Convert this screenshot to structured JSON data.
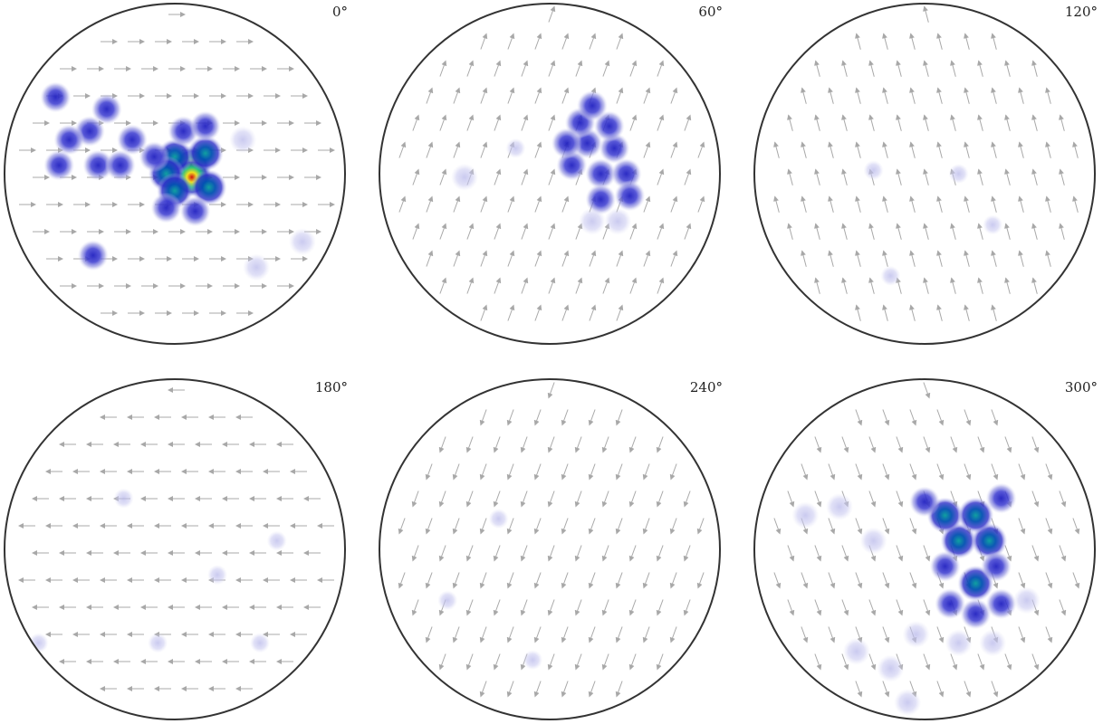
{
  "colors": {
    "outline": "#333333",
    "arrow": "#a8a8a8",
    "density_low": "#dcdcf4",
    "density_mid": "#3030c8",
    "density_high": "#d01010"
  },
  "chart_data": {
    "type": "scatter",
    "description_type": "pole-figure-density",
    "grid": false,
    "panels": [
      {
        "label": "0°",
        "rotation_deg": 0,
        "arrow_angle_deg": 0,
        "clusters": [
          {
            "u": 0.1,
            "v": 0.05,
            "w": 1.0
          },
          {
            "u": 0.1,
            "v": -0.02,
            "w": 1.3
          },
          {
            "u": 0.0,
            "v": 0.1,
            "w": 0.8
          },
          {
            "u": -0.05,
            "v": 0.0,
            "w": 0.8
          },
          {
            "u": 0.18,
            "v": 0.12,
            "w": 0.7
          },
          {
            "u": 0.0,
            "v": -0.1,
            "w": 0.7
          },
          {
            "u": 0.2,
            "v": -0.08,
            "w": 0.6
          },
          {
            "u": 0.05,
            "v": 0.25,
            "w": 0.5
          },
          {
            "u": 0.18,
            "v": 0.28,
            "w": 0.5
          },
          {
            "u": -0.05,
            "v": -0.2,
            "w": 0.5
          },
          {
            "u": 0.12,
            "v": -0.22,
            "w": 0.5
          },
          {
            "u": -0.25,
            "v": 0.2,
            "w": 0.35
          },
          {
            "u": -0.12,
            "v": 0.1,
            "w": 0.3
          },
          {
            "u": -0.7,
            "v": 0.45,
            "w": 0.35
          },
          {
            "u": -0.4,
            "v": 0.38,
            "w": 0.35
          },
          {
            "u": -0.5,
            "v": 0.25,
            "w": 0.3
          },
          {
            "u": -0.62,
            "v": 0.2,
            "w": 0.3
          },
          {
            "u": -0.45,
            "v": 0.05,
            "w": 0.3
          },
          {
            "u": -0.68,
            "v": 0.05,
            "w": 0.3
          },
          {
            "u": -0.32,
            "v": 0.05,
            "w": 0.3
          },
          {
            "u": -0.48,
            "v": -0.48,
            "w": 0.35
          },
          {
            "u": 0.48,
            "v": -0.55,
            "w": 0.25
          },
          {
            "u": 0.4,
            "v": 0.2,
            "w": 0.25
          },
          {
            "u": 0.75,
            "v": -0.4,
            "w": 0.2
          }
        ]
      },
      {
        "label": "60°",
        "rotation_deg": 60,
        "arrow_angle_deg": 70,
        "clusters": [
          {
            "u": 0.22,
            "v": 0.18,
            "w": 0.55
          },
          {
            "u": 0.38,
            "v": 0.15,
            "w": 0.45
          },
          {
            "u": 0.3,
            "v": 0.0,
            "w": 0.4
          },
          {
            "u": 0.13,
            "v": 0.05,
            "w": 0.4
          },
          {
            "u": 0.45,
            "v": 0.0,
            "w": 0.4
          },
          {
            "u": 0.3,
            "v": -0.15,
            "w": 0.4
          },
          {
            "u": 0.47,
            "v": -0.13,
            "w": 0.4
          },
          {
            "u": 0.18,
            "v": 0.3,
            "w": 0.35
          },
          {
            "u": 0.35,
            "v": 0.28,
            "w": 0.35
          },
          {
            "u": 0.25,
            "v": 0.4,
            "w": 0.3
          },
          {
            "u": 0.1,
            "v": 0.18,
            "w": 0.3
          },
          {
            "u": 0.25,
            "v": -0.28,
            "w": 0.25
          },
          {
            "u": 0.4,
            "v": -0.28,
            "w": 0.25
          },
          {
            "u": -0.5,
            "v": -0.02,
            "w": 0.15
          },
          {
            "u": -0.2,
            "v": 0.15,
            "w": 0.1
          }
        ]
      },
      {
        "label": "120°",
        "rotation_deg": 120,
        "arrow_angle_deg": 105,
        "clusters": [
          {
            "u": -0.3,
            "v": 0.02,
            "w": 0.08
          },
          {
            "u": 0.2,
            "v": 0.0,
            "w": 0.05
          },
          {
            "u": 0.4,
            "v": -0.3,
            "w": 0.05
          },
          {
            "u": -0.2,
            "v": -0.6,
            "w": 0.05
          }
        ]
      },
      {
        "label": "180°",
        "rotation_deg": 180,
        "arrow_angle_deg": 180,
        "clusters": [
          {
            "u": -0.3,
            "v": 0.3,
            "w": 0.12
          },
          {
            "u": 0.25,
            "v": -0.15,
            "w": 0.12
          },
          {
            "u": -0.1,
            "v": -0.55,
            "w": 0.1
          },
          {
            "u": 0.5,
            "v": -0.55,
            "w": 0.12
          },
          {
            "u": -0.8,
            "v": -0.55,
            "w": 0.1
          },
          {
            "u": 0.6,
            "v": 0.05,
            "w": 0.08
          }
        ]
      },
      {
        "label": "240°",
        "rotation_deg": 240,
        "arrow_angle_deg": 250,
        "clusters": [
          {
            "u": -0.3,
            "v": 0.18,
            "w": 0.1
          },
          {
            "u": -0.6,
            "v": -0.3,
            "w": 0.08
          },
          {
            "u": -0.1,
            "v": -0.65,
            "w": 0.05
          }
        ]
      },
      {
        "label": "300°",
        "rotation_deg": 300,
        "arrow_angle_deg": 290,
        "clusters": [
          {
            "u": 0.3,
            "v": -0.2,
            "w": 0.85
          },
          {
            "u": 0.2,
            "v": 0.05,
            "w": 0.65
          },
          {
            "u": 0.38,
            "v": 0.05,
            "w": 0.6
          },
          {
            "u": 0.12,
            "v": 0.2,
            "w": 0.6
          },
          {
            "u": 0.3,
            "v": 0.2,
            "w": 0.6
          },
          {
            "u": 0.12,
            "v": -0.1,
            "w": 0.55
          },
          {
            "u": 0.42,
            "v": -0.1,
            "w": 0.55
          },
          {
            "u": 0.3,
            "v": -0.38,
            "w": 0.5
          },
          {
            "u": 0.15,
            "v": -0.32,
            "w": 0.45
          },
          {
            "u": 0.45,
            "v": -0.32,
            "w": 0.4
          },
          {
            "u": 0.0,
            "v": 0.28,
            "w": 0.3
          },
          {
            "u": 0.45,
            "v": 0.3,
            "w": 0.3
          },
          {
            "u": -0.05,
            "v": -0.5,
            "w": 0.25
          },
          {
            "u": 0.2,
            "v": -0.55,
            "w": 0.25
          },
          {
            "u": 0.4,
            "v": -0.55,
            "w": 0.25
          },
          {
            "u": -0.2,
            "v": -0.7,
            "w": 0.25
          },
          {
            "u": -0.7,
            "v": 0.2,
            "w": 0.25
          },
          {
            "u": -0.5,
            "v": 0.25,
            "w": 0.25
          },
          {
            "u": -0.4,
            "v": -0.6,
            "w": 0.2
          },
          {
            "u": 0.6,
            "v": -0.3,
            "w": 0.2
          },
          {
            "u": -0.1,
            "v": -0.9,
            "w": 0.2
          },
          {
            "u": -0.3,
            "v": 0.05,
            "w": 0.15
          }
        ]
      }
    ]
  }
}
